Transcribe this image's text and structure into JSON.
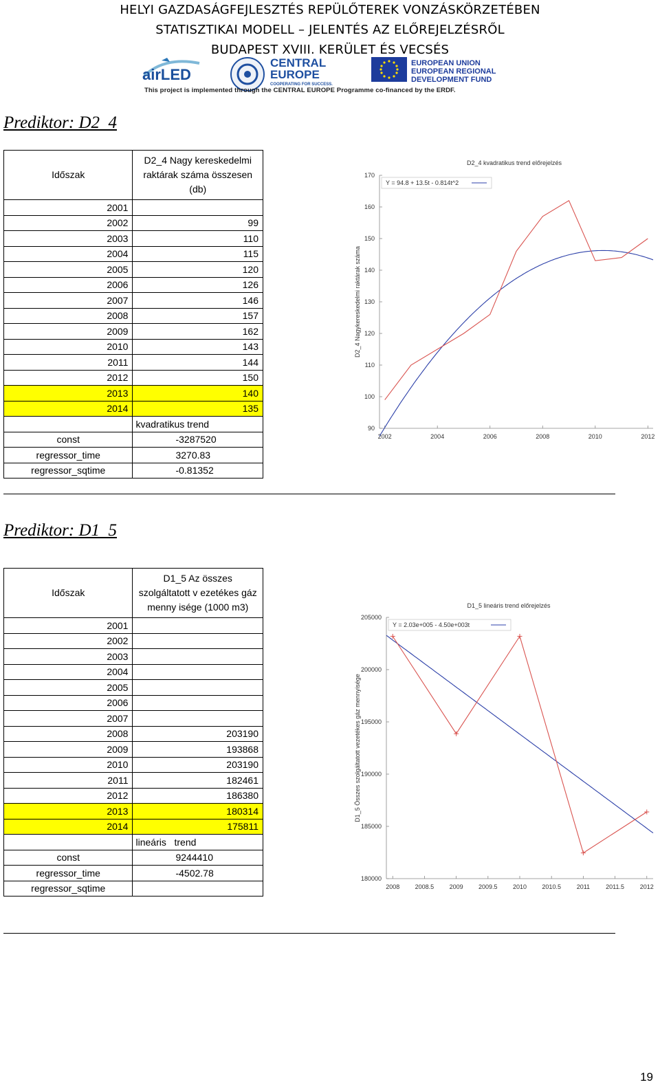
{
  "header": {
    "line1": "HELYI GAZDASÁGFEJLESZTÉS REPÜLŐTEREK VONZÁSKÖRZETÉBEN",
    "line2": "STATISZTIKAI MODELL – JELENTÉS AZ ELŐREJELZÉSRŐL",
    "line3": "BUDAPEST XVIII. KERÜLET ÉS VECSÉS",
    "logo_airled": "airLED",
    "logo_central1": "CENTRAL",
    "logo_central2": "EUROPE",
    "logo_central3": "COOPERATING FOR SUCCESS.",
    "logo_eu1": "EUROPEAN UNION",
    "logo_eu2": "EUROPEAN REGIONAL",
    "logo_eu3": "DEVELOPMENT FUND",
    "project_note": "This project is implemented through the CENTRAL EUROPE Programme co-financed by the ERDF."
  },
  "colors": {
    "highlight": "#ffff00",
    "actual_line": "#d9534f",
    "trend_line": "#2b3fa8"
  },
  "section1": {
    "title": "Prediktor: D2_4",
    "col_period": "Időszak",
    "col_value_l1": "D2_4 Nagy kereskedelmi",
    "col_value_l2": "raktárak száma összesen",
    "col_value_l3": "(db)",
    "rows": [
      {
        "year": "2001",
        "value": ""
      },
      {
        "year": "2002",
        "value": "99"
      },
      {
        "year": "2003",
        "value": "110"
      },
      {
        "year": "2004",
        "value": "115"
      },
      {
        "year": "2005",
        "value": "120"
      },
      {
        "year": "2006",
        "value": "126"
      },
      {
        "year": "2007",
        "value": "146"
      },
      {
        "year": "2008",
        "value": "157"
      },
      {
        "year": "2009",
        "value": "162"
      },
      {
        "year": "2010",
        "value": "143"
      },
      {
        "year": "2011",
        "value": "144"
      },
      {
        "year": "2012",
        "value": "150"
      },
      {
        "year": "2013",
        "value": "140",
        "highlight": true
      },
      {
        "year": "2014",
        "value": "135",
        "highlight": true
      }
    ],
    "model_label": "kvadratikus trend",
    "coefs": [
      {
        "name": "const",
        "value": "-3287520"
      },
      {
        "name": "regressor_time",
        "value": "3270.83"
      },
      {
        "name": "regressor_sqtime",
        "value": "-0.81352"
      }
    ]
  },
  "section2": {
    "title": "Prediktor: D1_5",
    "col_period": "Időszak",
    "col_value_l1": "D1_5 Az összes",
    "col_value_l2": "szolgáltatott v ezetékes gáz",
    "col_value_l3": "menny isége (1000 m3)",
    "rows": [
      {
        "year": "2001",
        "value": ""
      },
      {
        "year": "2002",
        "value": ""
      },
      {
        "year": "2003",
        "value": ""
      },
      {
        "year": "2004",
        "value": ""
      },
      {
        "year": "2005",
        "value": ""
      },
      {
        "year": "2006",
        "value": ""
      },
      {
        "year": "2007",
        "value": ""
      },
      {
        "year": "2008",
        "value": "203190"
      },
      {
        "year": "2009",
        "value": "193868"
      },
      {
        "year": "2010",
        "value": "203190"
      },
      {
        "year": "2011",
        "value": "182461"
      },
      {
        "year": "2012",
        "value": "186380"
      },
      {
        "year": "2013",
        "value": "180314",
        "highlight": true
      },
      {
        "year": "2014",
        "value": "175811",
        "highlight": true
      }
    ],
    "model_label": "lineáris   trend",
    "coefs": [
      {
        "name": "const",
        "value": "9244410"
      },
      {
        "name": "regressor_time",
        "value": "-4502.78"
      },
      {
        "name": "regressor_sqtime",
        "value": ""
      }
    ]
  },
  "chart_data": [
    {
      "type": "line",
      "title": "D2_4 kvadratikus trend előrejelzés",
      "ylabel": "D2_4 Nagykereskedelmi raktárak száma",
      "xlabel": "",
      "xlim": [
        2001.8,
        2012.2
      ],
      "ylim": [
        90,
        170
      ],
      "xticks": [
        2002,
        2004,
        2006,
        2008,
        2010,
        2012
      ],
      "yticks": [
        90,
        100,
        110,
        120,
        130,
        140,
        150,
        160,
        170
      ],
      "legend": "Y = 94.8 + 13.5t - 0.814t^2",
      "legend_position": "top-left",
      "series": [
        {
          "x": [
            2002,
            2003,
            2004,
            2005,
            2006,
            2007,
            2008,
            2009,
            2010,
            2011,
            2012
          ],
          "values": [
            99,
            110,
            115,
            120,
            126,
            146,
            157,
            162,
            143,
            144,
            150
          ]
        }
      ],
      "trend": {
        "kind": "quadratic",
        "const": -3287520,
        "b1": 3270.83,
        "b2": -0.81352
      }
    },
    {
      "type": "line",
      "title": "D1_5 lineáris trend előrejelzés",
      "ylabel": "D1_5 Összes szolgáltatott vezetékes gáz mennyisége",
      "xlabel": "",
      "xlim": [
        2007.9,
        2012.1
      ],
      "ylim": [
        180000,
        205000
      ],
      "xticks": [
        "2008",
        "2008.5",
        "2009",
        "2009.5",
        "2010",
        "2010.5",
        "2011",
        "2011.5",
        "2012"
      ],
      "yticks": [
        "180000",
        "185000",
        "190000",
        "195000",
        "200000",
        "205000"
      ],
      "legend": "Y = 2.03e+005 - 4.50e+003t",
      "legend_position": "top-left",
      "series": [
        {
          "x": [
            2008,
            2009,
            2010,
            2011,
            2012
          ],
          "values": [
            203190,
            193868,
            203190,
            182461,
            186380
          ]
        }
      ],
      "trend": {
        "kind": "linear",
        "const": 9244410,
        "b1": -4502.78
      }
    }
  ],
  "page_number": "19"
}
